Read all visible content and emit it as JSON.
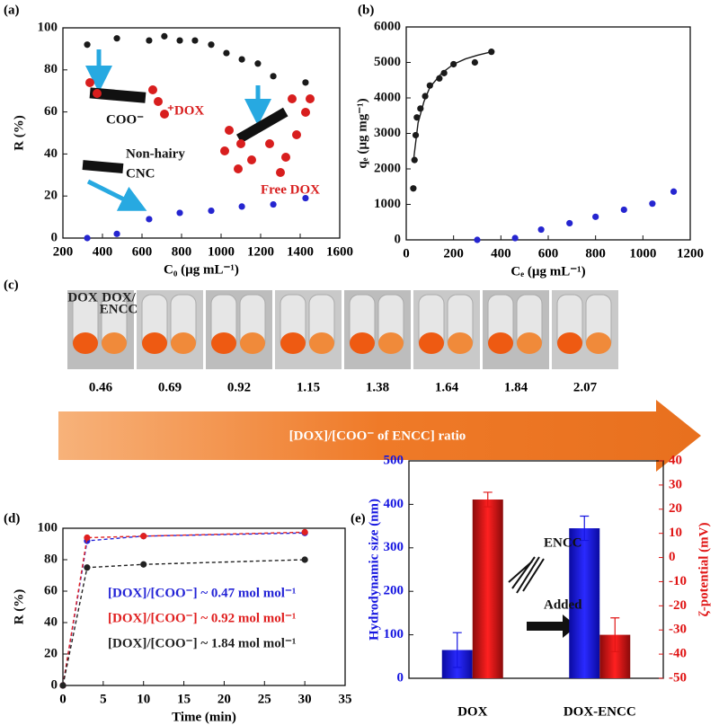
{
  "chart_data": [
    {
      "type": "scatter",
      "panel": "(a)",
      "xlabel": "C₀ (µg mL⁻¹)",
      "ylabel": "R (%)",
      "xlim": [
        200,
        1600
      ],
      "xticks": [
        200,
        400,
        600,
        800,
        1000,
        1200,
        1400,
        1600
      ],
      "ylim": [
        0,
        100
      ],
      "yticks": [
        0,
        20,
        40,
        60,
        80,
        100
      ],
      "series": [
        {
          "color": "#1a1a1a",
          "x": [
            323,
            473,
            636,
            713,
            791,
            868,
            950,
            1027,
            1105,
            1186,
            1264,
            1427
          ],
          "values": [
            92,
            95,
            94,
            96,
            94,
            94,
            92,
            88,
            85,
            83,
            77,
            74
          ]
        },
        {
          "color": "#2525d0",
          "x": [
            323,
            473,
            636,
            791,
            950,
            1105,
            1264,
            1427
          ],
          "values": [
            0,
            2,
            9,
            12,
            13,
            15,
            16,
            19
          ]
        }
      ],
      "annotations": [
        {
          "text": "COO⁻",
          "color": "#111"
        },
        {
          "text": "⁺DOX",
          "color": "#d81e1e"
        },
        {
          "text": "Non-hairy",
          "color": "#111"
        },
        {
          "text": "CNC",
          "color": "#111"
        },
        {
          "text": "Free DOX",
          "color": "#d81e1e"
        }
      ]
    },
    {
      "type": "scatter",
      "panel": "(b)",
      "xlabel": "Cₑ (µg mL⁻¹)",
      "ylabel": "qₑ (µg mg⁻¹)",
      "xlim": [
        0,
        1200
      ],
      "xticks": [
        0,
        200,
        400,
        600,
        800,
        1000,
        1200
      ],
      "ylim": [
        0,
        6000
      ],
      "yticks": [
        0,
        1000,
        2000,
        3000,
        4000,
        5000,
        6000
      ],
      "series": [
        {
          "color": "#1a1a1a",
          "x": [
            30,
            35,
            40,
            45,
            60,
            80,
            100,
            140,
            160,
            200,
            290,
            360
          ],
          "values": [
            1450,
            2250,
            2950,
            3450,
            3700,
            4050,
            4350,
            4550,
            4700,
            4950,
            5000,
            5300
          ]
        },
        {
          "color": "#2525d0",
          "x": [
            300,
            460,
            570,
            690,
            800,
            920,
            1040,
            1130
          ],
          "values": [
            0,
            50,
            290,
            470,
            650,
            850,
            1020,
            1360
          ]
        },
        {
          "type": "line",
          "color": "#1a1a1a",
          "x": [
            30,
            50,
            75,
            100,
            150,
            200,
            250,
            300,
            360
          ],
          "values": [
            2200,
            3300,
            3900,
            4300,
            4700,
            4950,
            5100,
            5200,
            5300
          ]
        }
      ]
    },
    {
      "type": "line",
      "panel": "(d)",
      "xlabel": "Time (min)",
      "ylabel": "R (%)",
      "xlim": [
        0,
        35
      ],
      "xticks": [
        0,
        5,
        10,
        15,
        20,
        25,
        30,
        35
      ],
      "ylim": [
        0,
        100
      ],
      "yticks": [
        0,
        20,
        40,
        60,
        80,
        100
      ],
      "series": [
        {
          "name": "[DOX]/[COO⁻] ~ 0.47 mol mol⁻¹",
          "color": "#2323d6",
          "x": [
            0,
            3,
            10,
            30
          ],
          "values": [
            0,
            92,
            95,
            97
          ]
        },
        {
          "name": "[DOX]/[COO⁻] ~ 0.92 mol mol⁻¹",
          "color": "#e02020",
          "x": [
            0,
            3,
            10,
            30
          ],
          "values": [
            0,
            94,
            95,
            97.5
          ]
        },
        {
          "name": "[DOX]/[COO⁻] ~ 1.84 mol mol⁻¹",
          "color": "#222222",
          "x": [
            0,
            3,
            10,
            30
          ],
          "values": [
            0,
            75,
            77,
            80
          ]
        }
      ]
    },
    {
      "type": "bar",
      "panel": "(e)",
      "categories": [
        "DOX",
        "DOX-ENCC"
      ],
      "ylabel": "Hydrodynamic size (nm)",
      "y2label": "ζ-potential (mV)",
      "ylim": [
        0,
        500
      ],
      "yticks": [
        0,
        100,
        200,
        300,
        400,
        500
      ],
      "y2lim": [
        -50,
        40
      ],
      "y2ticks": [
        -50,
        -40,
        -30,
        -20,
        -10,
        0,
        10,
        20,
        30,
        40
      ],
      "series": [
        {
          "color": "#1515e0",
          "values": [
            65,
            345
          ],
          "errors": [
            40,
            28
          ]
        },
        {
          "axis": "y2",
          "color": "#e01515",
          "values": [
            24,
            -32
          ],
          "errors": [
            3,
            7
          ]
        }
      ],
      "annotations": [
        {
          "text": "ENCC",
          "color": "#111"
        },
        {
          "text": "Added",
          "color": "#111"
        }
      ]
    }
  ],
  "photo_panel": {
    "panel": "(c)",
    "labels": [
      "DOX",
      "DOX/",
      "ENCC"
    ],
    "ratios": [
      0.46,
      0.69,
      0.92,
      1.15,
      1.38,
      1.64,
      1.84,
      2.07
    ],
    "arrow_label": "[DOX]/[COO⁻ of ENCC] ratio"
  }
}
